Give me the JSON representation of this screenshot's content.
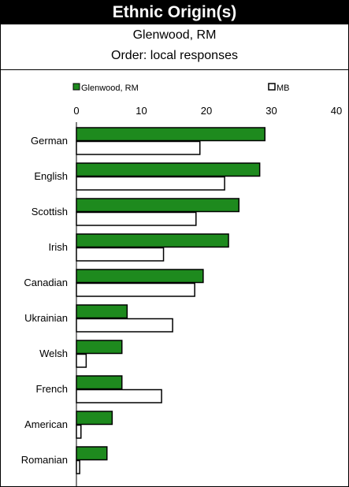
{
  "header": {
    "title": "Ethnic Origin(s)",
    "subtitle": "Glenwood, RM",
    "order": "Order: local responses"
  },
  "colors": {
    "local": "#1e8a1e",
    "province": "#ffffff",
    "stroke": "#000000"
  },
  "chart_data": {
    "type": "bar",
    "orientation": "horizontal",
    "categories": [
      "German",
      "English",
      "Scottish",
      "Irish",
      "Canadian",
      "Ukrainian",
      "Welsh",
      "French",
      "American",
      "Romanian"
    ],
    "series": [
      {
        "name": "Glenwood, RM",
        "values": [
          29.0,
          28.2,
          25.0,
          23.4,
          19.5,
          7.8,
          7.0,
          7.0,
          5.5,
          4.7
        ]
      },
      {
        "name": "MB",
        "values": [
          19.0,
          22.8,
          18.4,
          13.4,
          18.2,
          14.8,
          1.5,
          13.1,
          0.7,
          0.5
        ]
      }
    ],
    "xlim": [
      0,
      40
    ],
    "xticks": [
      "0",
      "10",
      "20",
      "30",
      "40"
    ],
    "legend": "top",
    "grid": false
  }
}
